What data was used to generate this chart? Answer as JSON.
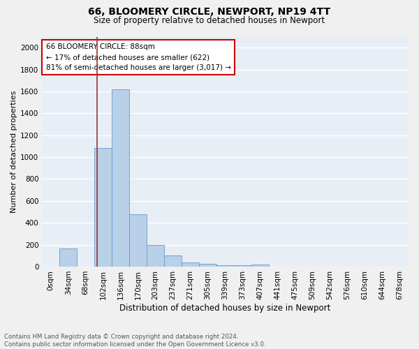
{
  "title": "66, BLOOMERY CIRCLE, NEWPORT, NP19 4TT",
  "subtitle": "Size of property relative to detached houses in Newport",
  "xlabel": "Distribution of detached houses by size in Newport",
  "ylabel": "Number of detached properties",
  "footer": "Contains HM Land Registry data © Crown copyright and database right 2024.\nContains public sector information licensed under the Open Government Licence v3.0.",
  "bar_labels": [
    "0sqm",
    "34sqm",
    "68sqm",
    "102sqm",
    "136sqm",
    "170sqm",
    "203sqm",
    "237sqm",
    "271sqm",
    "305sqm",
    "339sqm",
    "373sqm",
    "407sqm",
    "441sqm",
    "475sqm",
    "509sqm",
    "542sqm",
    "576sqm",
    "610sqm",
    "644sqm",
    "678sqm"
  ],
  "bar_values": [
    0,
    163,
    0,
    1085,
    1621,
    480,
    200,
    100,
    38,
    25,
    15,
    15,
    20,
    0,
    0,
    0,
    0,
    0,
    0,
    0,
    0
  ],
  "bar_color": "#b8d0e8",
  "bar_edge_color": "#6699cc",
  "bg_color": "#e8eef5",
  "grid_color": "#ffffff",
  "vline_x": 2.65,
  "vline_color": "#993333",
  "annotation_text": "66 BLOOMERY CIRCLE: 88sqm\n← 17% of detached houses are smaller (622)\n81% of semi-detached houses are larger (3,017) →",
  "annotation_box_facecolor": "#ffffff",
  "annotation_box_edgecolor": "#cc0000",
  "fig_facecolor": "#f0f0f0",
  "ylim": [
    0,
    2100
  ],
  "yticks": [
    0,
    200,
    400,
    600,
    800,
    1000,
    1200,
    1400,
    1600,
    1800,
    2000
  ],
  "title_fontsize": 10,
  "subtitle_fontsize": 8.5,
  "ylabel_fontsize": 8,
  "xlabel_fontsize": 8.5,
  "tick_fontsize": 7.5,
  "footer_fontsize": 6.2
}
